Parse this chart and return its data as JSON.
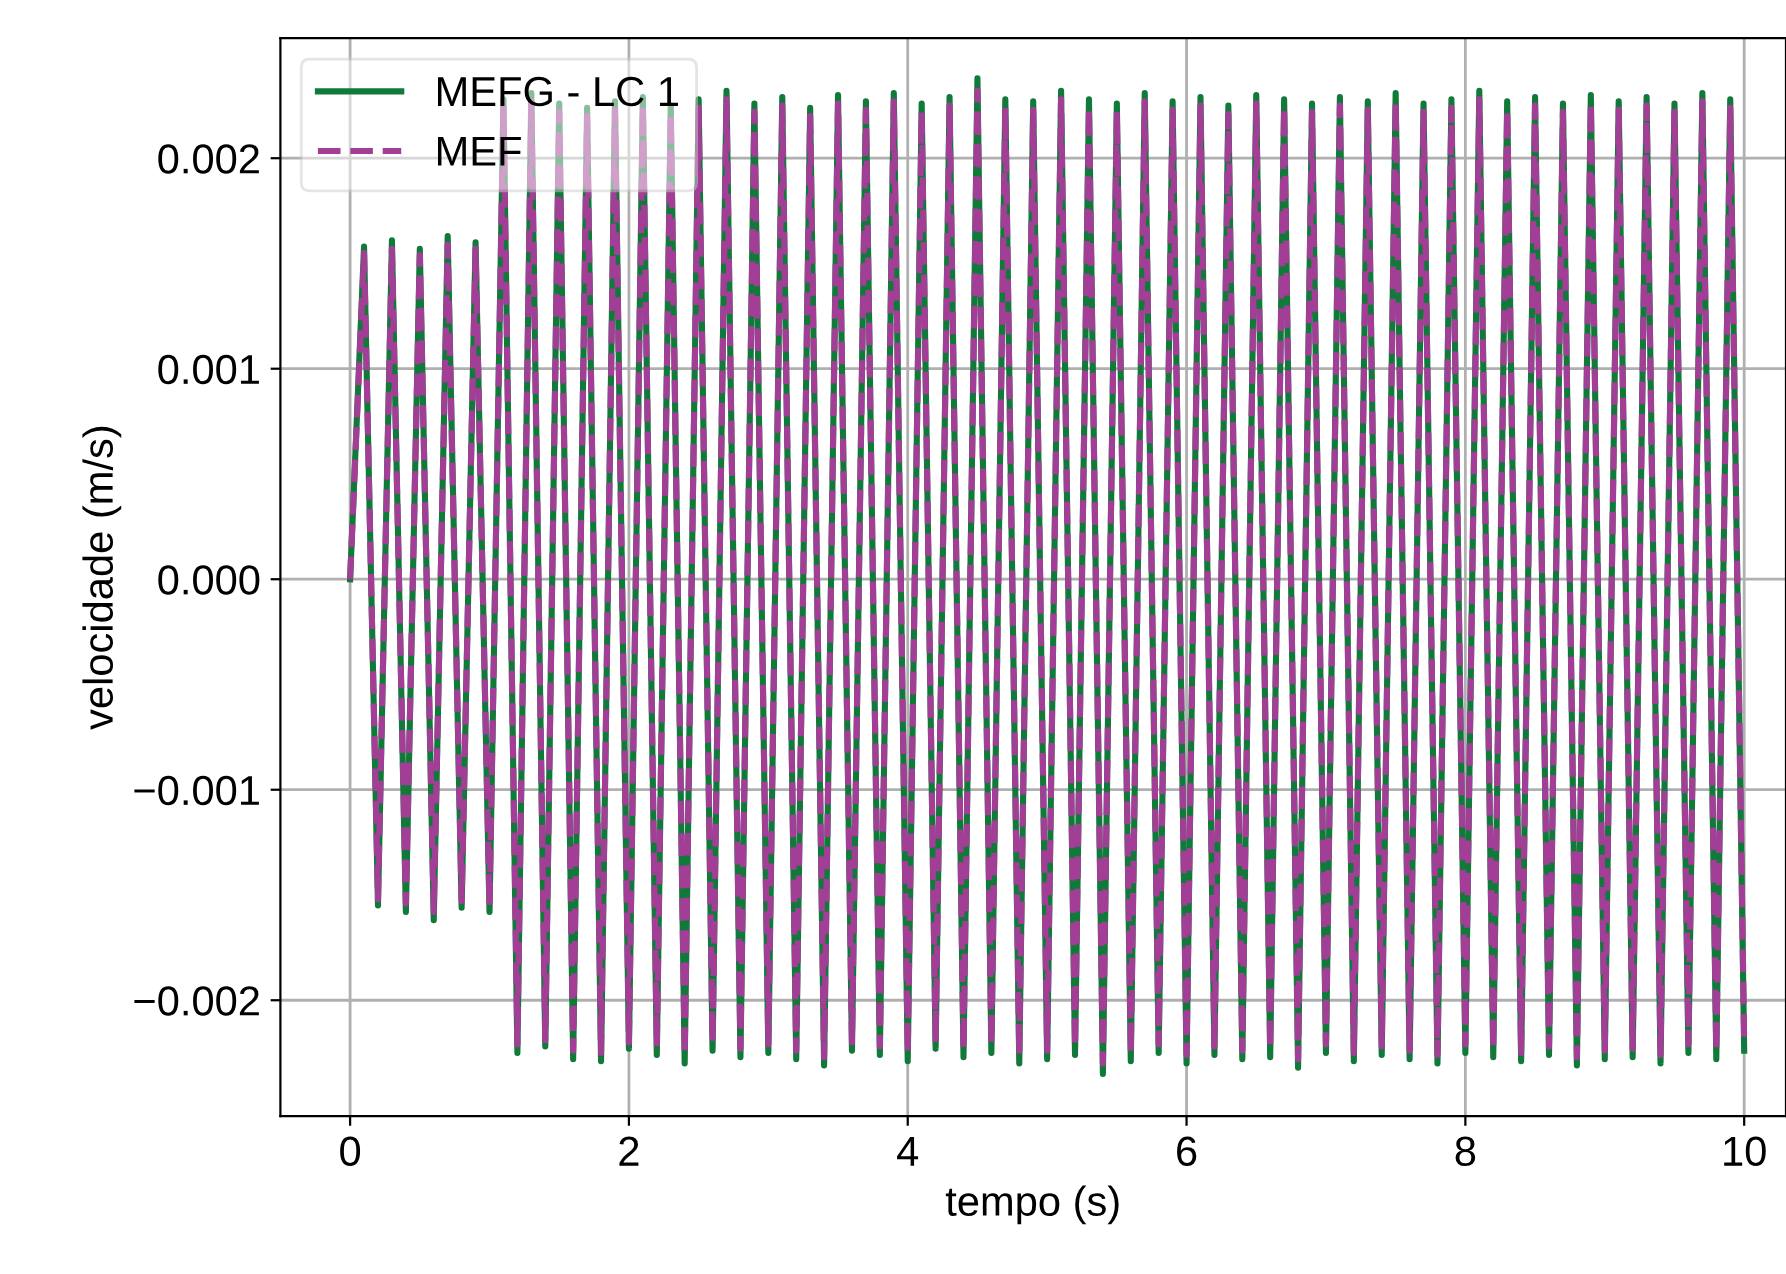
{
  "chart_data": {
    "type": "line",
    "xlabel": "tempo (s)",
    "ylabel": "velocidade (m/s)",
    "xlim": [
      -0.5,
      10.3
    ],
    "ylim": [
      -0.00255,
      0.00257
    ],
    "xticks": [
      0,
      2,
      4,
      6,
      8,
      10
    ],
    "yticks": [
      {
        "value": -0.002,
        "label": "−0.002"
      },
      {
        "value": -0.001,
        "label": "−0.001"
      },
      {
        "value": 0,
        "label": "0.000"
      },
      {
        "value": 0.001,
        "label": "0.001"
      },
      {
        "value": 0.002,
        "label": "0.002"
      }
    ],
    "grid": true,
    "legend": "top left",
    "marker": "none",
    "x": [
      0,
      0.1,
      0.2,
      0.3,
      0.4,
      0.5,
      0.6,
      0.7,
      0.8,
      0.9,
      1.0,
      1.1,
      1.2,
      1.3,
      1.4,
      1.5,
      1.6,
      1.7,
      1.8,
      1.9,
      2.0,
      2.1,
      2.2,
      2.3,
      2.4,
      2.5,
      2.6,
      2.7,
      2.8,
      2.9,
      3.0,
      3.1,
      3.2,
      3.3,
      3.4,
      3.5,
      3.6,
      3.7,
      3.8,
      3.9,
      4.0,
      4.1,
      4.2,
      4.3,
      4.4,
      4.5,
      4.6,
      4.7,
      4.8,
      4.9,
      5.0,
      5.1,
      5.2,
      5.3,
      5.4,
      5.5,
      5.6,
      5.7,
      5.8,
      5.9,
      6.0,
      6.1,
      6.2,
      6.3,
      6.4,
      6.5,
      6.6,
      6.7,
      6.8,
      6.9,
      7.0,
      7.1,
      7.2,
      7.3,
      7.4,
      7.5,
      7.6,
      7.7,
      7.8,
      7.9,
      8.0,
      8.1,
      8.2,
      8.3,
      8.4,
      8.5,
      8.6,
      8.7,
      8.8,
      8.9,
      9.0,
      9.1,
      9.2,
      9.3,
      9.4,
      9.5,
      9.6,
      9.7,
      9.8,
      9.9,
      10.0
    ],
    "series": [
      {
        "name": "MEFG - LC 1",
        "color": "#117a3a",
        "line_style": "solid",
        "values": [
          0.0,
          0.00158,
          -0.00155,
          0.00161,
          -0.00158,
          0.00157,
          -0.00162,
          0.00163,
          -0.00156,
          0.0016,
          -0.00158,
          0.00228,
          -0.00225,
          0.00231,
          -0.00222,
          0.00226,
          -0.00228,
          0.00224,
          -0.00229,
          0.00227,
          -0.00223,
          0.00229,
          -0.00226,
          0.00225,
          -0.0023,
          0.00228,
          -0.00224,
          0.00232,
          -0.00227,
          0.00226,
          -0.00225,
          0.00229,
          -0.00228,
          0.00224,
          -0.00231,
          0.0023,
          -0.00224,
          0.00227,
          -0.00226,
          0.00231,
          -0.00229,
          0.00226,
          -0.00223,
          0.00229,
          -0.00227,
          0.00238,
          -0.00225,
          0.00228,
          -0.0023,
          0.00227,
          -0.00228,
          0.00232,
          -0.00226,
          0.00228,
          -0.00235,
          0.00226,
          -0.00229,
          0.00231,
          -0.00225,
          0.00227,
          -0.0023,
          0.00229,
          -0.00226,
          0.00225,
          -0.00228,
          0.0023,
          -0.00227,
          0.00228,
          -0.00232,
          0.00226,
          -0.00225,
          0.00229,
          -0.00229,
          0.00227,
          -0.00226,
          0.00231,
          -0.00228,
          0.00226,
          -0.0023,
          0.00228,
          -0.00225,
          0.00232,
          -0.00227,
          0.00227,
          -0.00229,
          0.00229,
          -0.00226,
          0.00226,
          -0.00231,
          0.0023,
          -0.00228,
          0.00227,
          -0.00227,
          0.00229,
          -0.0023,
          0.00226,
          -0.00225,
          0.00231,
          -0.00228,
          0.00228,
          -0.00224
        ]
      },
      {
        "name": "MEF",
        "color": "#a23e96",
        "line_style": "dashed",
        "values": [
          0.0,
          0.00155,
          -0.00152,
          0.00157,
          -0.00154,
          0.00154,
          -0.00158,
          0.00159,
          -0.00153,
          0.00157,
          -0.00155,
          0.00224,
          -0.00221,
          0.00227,
          -0.00219,
          0.00222,
          -0.00224,
          0.0022,
          -0.00225,
          0.00223,
          -0.0022,
          0.00225,
          -0.00222,
          0.00221,
          -0.00226,
          0.00224,
          -0.0022,
          0.00228,
          -0.00223,
          0.00222,
          -0.00221,
          0.00225,
          -0.00224,
          0.0022,
          -0.00227,
          0.00226,
          -0.0022,
          0.00223,
          -0.00222,
          0.00227,
          -0.00225,
          0.00222,
          -0.0022,
          0.00225,
          -0.00223,
          0.00232,
          -0.00221,
          0.00224,
          -0.00226,
          0.00223,
          -0.00224,
          0.00228,
          -0.00222,
          0.00224,
          -0.0023,
          0.00222,
          -0.00225,
          0.00227,
          -0.00221,
          0.00223,
          -0.00226,
          0.00225,
          -0.00222,
          0.00221,
          -0.00224,
          0.00226,
          -0.00223,
          0.00224,
          -0.00228,
          0.00222,
          -0.00221,
          0.00225,
          -0.00225,
          0.00223,
          -0.00222,
          0.00227,
          -0.00224,
          0.00222,
          -0.00226,
          0.00224,
          -0.00221,
          0.00228,
          -0.00223,
          0.00223,
          -0.00225,
          0.00225,
          -0.00222,
          0.00222,
          -0.00227,
          0.00226,
          -0.00224,
          0.00223,
          -0.00223,
          0.00225,
          -0.00226,
          0.00222,
          -0.00221,
          0.00227,
          -0.00224,
          0.00224,
          -0.0022
        ]
      }
    ]
  }
}
